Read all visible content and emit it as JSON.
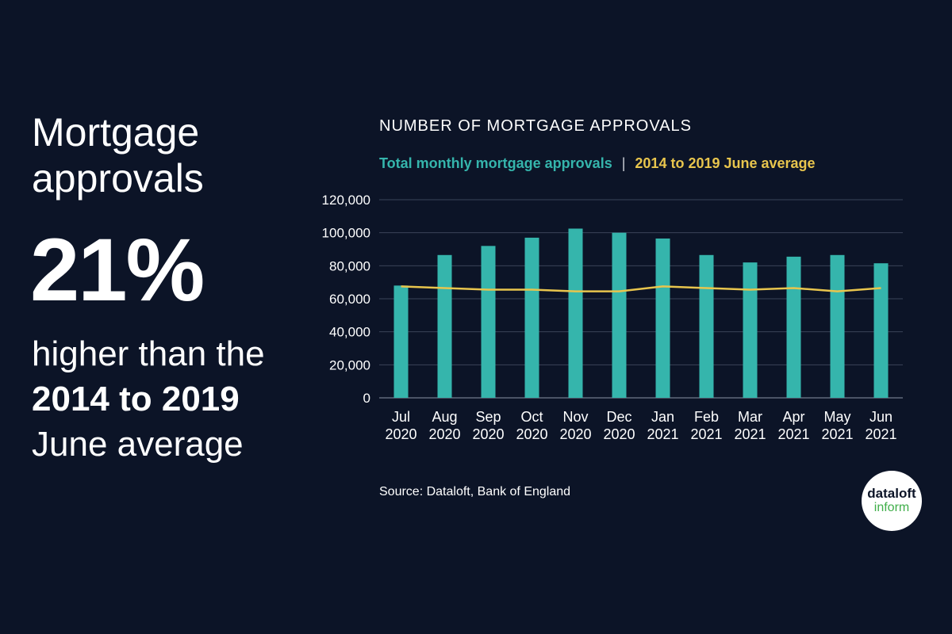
{
  "headline": "Mortgage approvals",
  "stat": "21%",
  "sub_line1": "higher than the",
  "sub_line2": "2014 to 2019",
  "sub_line3": "June average",
  "source": "Source: Dataloft, Bank of England",
  "logo": {
    "line1": "dataloft",
    "line2": "inform"
  },
  "legend": {
    "bars": "Total monthly mortgage approvals",
    "separator": "|",
    "line": "2014 to 2019 June average"
  },
  "colors": {
    "background": "#0c1427",
    "bar": "#35b5ac",
    "line": "#e8c54d",
    "logo_green": "#3fae49"
  },
  "chart_data": {
    "type": "bar",
    "title": "NUMBER OF MORTGAGE APPROVALS",
    "categories": [
      [
        "Jul",
        "2020"
      ],
      [
        "Aug",
        "2020"
      ],
      [
        "Sep",
        "2020"
      ],
      [
        "Oct",
        "2020"
      ],
      [
        "Nov",
        "2020"
      ],
      [
        "Dec",
        "2020"
      ],
      [
        "Jan",
        "2021"
      ],
      [
        "Feb",
        "2021"
      ],
      [
        "Mar",
        "2021"
      ],
      [
        "Apr",
        "2021"
      ],
      [
        "May",
        "2021"
      ],
      [
        "Jun",
        "2021"
      ]
    ],
    "series": [
      {
        "name": "Total monthly mortgage approvals",
        "type": "bar",
        "values": [
          68000,
          86500,
          92000,
          97000,
          102500,
          100000,
          96500,
          86500,
          82000,
          85500,
          86500,
          81500
        ]
      },
      {
        "name": "2014 to 2019 June average",
        "type": "line",
        "values": [
          67500,
          66500,
          65500,
          65500,
          64500,
          64500,
          67500,
          66500,
          65500,
          66500,
          64500,
          66500
        ]
      }
    ],
    "ylim": [
      0,
      120000
    ],
    "yticks": [
      0,
      20000,
      40000,
      60000,
      80000,
      100000,
      120000
    ],
    "ytick_labels": [
      "0",
      "20,000",
      "40,000",
      "60,000",
      "80,000",
      "100,000",
      "120,000"
    ],
    "grid": true
  }
}
